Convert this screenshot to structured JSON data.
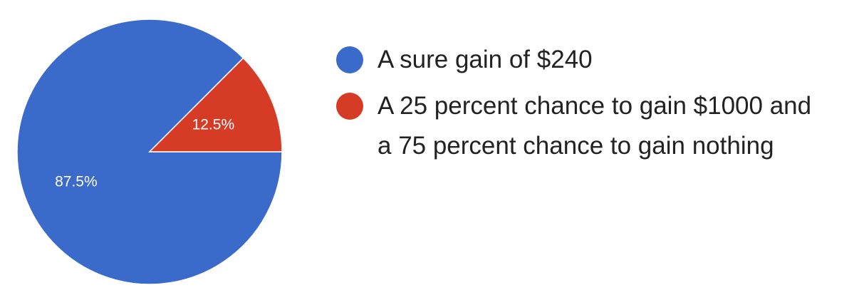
{
  "chart_data": {
    "type": "pie",
    "categories": [
      "A sure gain of $240",
      "A 25 percent chance to gain $1000 and a 75 percent chance to gain nothing"
    ],
    "values": [
      87.5,
      12.5
    ],
    "slice_labels": [
      "87.5%",
      "12.5%"
    ],
    "colors": [
      "#3a6bcb",
      "#d63b25"
    ],
    "legend_position": "right"
  }
}
